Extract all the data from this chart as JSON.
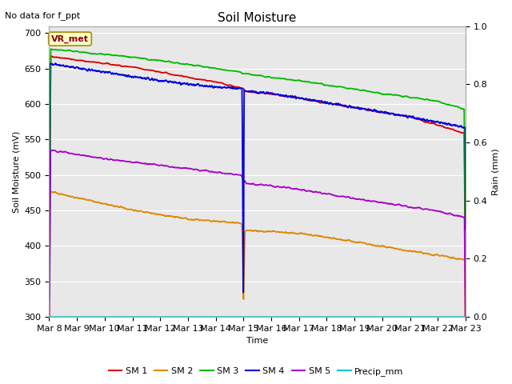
{
  "title": "Soil Moisture",
  "subtitle": "No data for f_ppt",
  "xlabel": "Time",
  "ylabel_left": "Soil Moisture (mV)",
  "ylabel_right": "Rain (mm)",
  "annotation": "VR_met",
  "ylim_left": [
    300,
    710
  ],
  "ylim_right": [
    0.0,
    1.0
  ],
  "yticks_left": [
    300,
    350,
    400,
    450,
    500,
    550,
    600,
    650,
    700
  ],
  "yticks_right": [
    0.0,
    0.2,
    0.4,
    0.6,
    0.8,
    1.0
  ],
  "x_labels": [
    "Mar 8",
    "Mar 9",
    "Mar 10",
    "Mar 11",
    "Mar 12",
    "Mar 13",
    "Mar 14",
    "Mar 15",
    "Mar 16",
    "Mar 17",
    "Mar 18",
    "Mar 19",
    "Mar 20",
    "Mar 21",
    "Mar 22",
    "Mar 23"
  ],
  "colors": {
    "SM1": "#dd0000",
    "SM2": "#dd8800",
    "SM3": "#00bb00",
    "SM4": "#0000dd",
    "SM5": "#aa00cc",
    "Precip": "#00cccc",
    "bg": "#e8e8e8",
    "fig_bg": "#ffffff"
  },
  "legend_labels": [
    "SM 1",
    "SM 2",
    "SM 3",
    "SM 4",
    "SM 5",
    "Precip_mm"
  ],
  "dip_day": 7.0,
  "sm1_knots_x": [
    0,
    1,
    2,
    3,
    4,
    5,
    6,
    7.0,
    7.05,
    8,
    9,
    10,
    11,
    12,
    13,
    14,
    15
  ],
  "sm1_knots_y": [
    668,
    662,
    657,
    652,
    645,
    638,
    631,
    622,
    618,
    614,
    608,
    601,
    595,
    588,
    582,
    570,
    558
  ],
  "sm2_knots_x": [
    0,
    1,
    2,
    3,
    4,
    5,
    6,
    6.9,
    6.95,
    7.0,
    7.05,
    7.1,
    7.15,
    8,
    9,
    10,
    11,
    12,
    13,
    14,
    15
  ],
  "sm2_knots_y": [
    477,
    468,
    459,
    451,
    444,
    438,
    435,
    432,
    430,
    315,
    420,
    422,
    422,
    420,
    418,
    412,
    406,
    399,
    393,
    387,
    380
  ],
  "sm3_knots_x": [
    0,
    1,
    2,
    3,
    4,
    5,
    6,
    6.9,
    6.95,
    7.0,
    7.05,
    7.1,
    8,
    9,
    10,
    11,
    12,
    13,
    14,
    15
  ],
  "sm3_knots_y": [
    678,
    674,
    670,
    666,
    661,
    656,
    650,
    645,
    643,
    643,
    643,
    643,
    638,
    633,
    627,
    621,
    615,
    610,
    604,
    592
  ],
  "sm4_knots_x": [
    0,
    1,
    2,
    3,
    4,
    5,
    6,
    6.95,
    7.0,
    7.02,
    7.05,
    7.1,
    8,
    9,
    10,
    11,
    12,
    13,
    14,
    15
  ],
  "sm4_knots_y": [
    657,
    651,
    645,
    639,
    633,
    628,
    624,
    622,
    300,
    620,
    619,
    618,
    615,
    609,
    602,
    595,
    589,
    582,
    575,
    566
  ],
  "sm5_knots_x": [
    0,
    1,
    2,
    3,
    4,
    5,
    6,
    6.9,
    6.95,
    7.0,
    7.05,
    7.1,
    8,
    9,
    10,
    11,
    12,
    13,
    14,
    15
  ],
  "sm5_knots_y": [
    535,
    529,
    523,
    518,
    514,
    509,
    504,
    500,
    498,
    490,
    492,
    488,
    485,
    480,
    473,
    467,
    461,
    455,
    449,
    440
  ]
}
